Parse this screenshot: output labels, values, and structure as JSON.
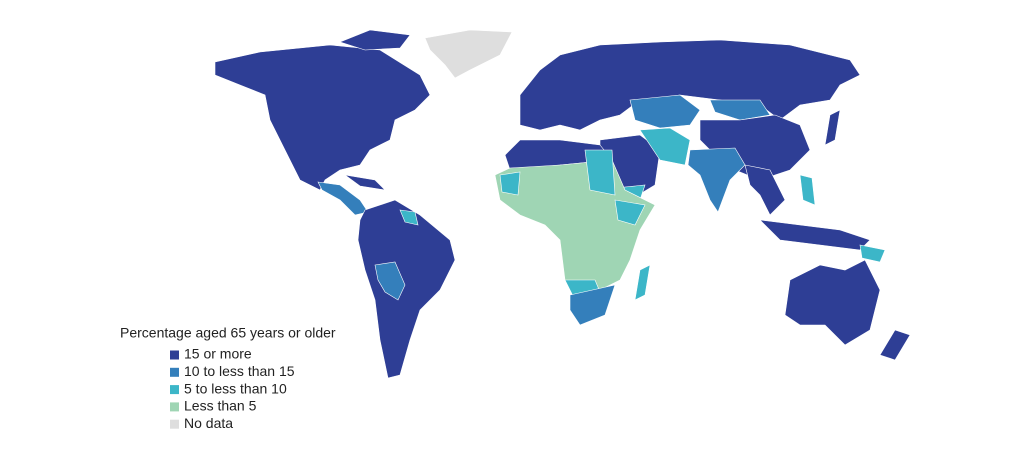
{
  "legend": {
    "title": "Percentage aged 65 years or older",
    "items": [
      {
        "label": "15 or more",
        "color": "#2e3e95"
      },
      {
        "label": "10 to less than 15",
        "color": "#347fbb"
      },
      {
        "label": "5 to less than 10",
        "color": "#3cb6c8"
      },
      {
        "label": "Less than 5",
        "color": "#9fd5b4"
      },
      {
        "label": "No data",
        "color": "#dedede"
      }
    ]
  }
}
